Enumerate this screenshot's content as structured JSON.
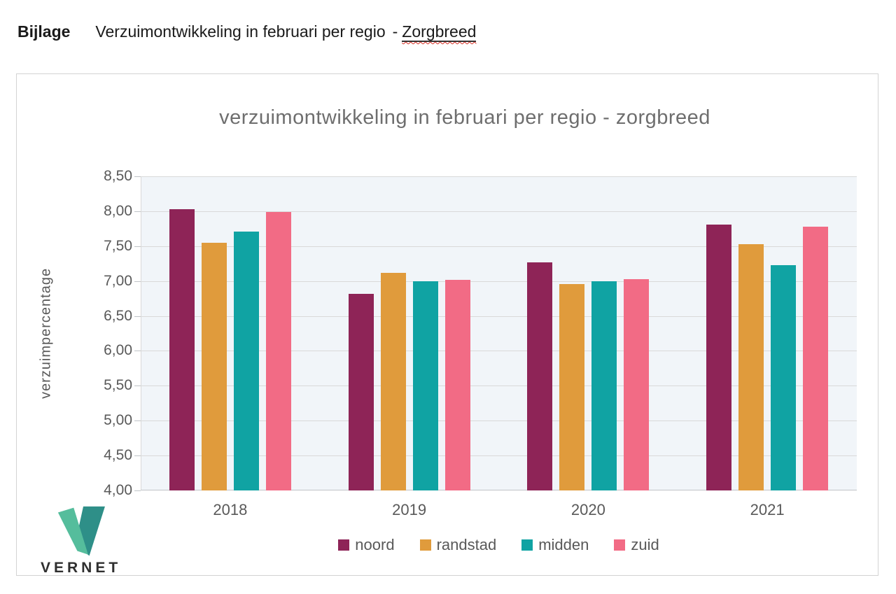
{
  "header": {
    "prefix": "Bijlage",
    "title": "Verzuimontwikkeling in februari per regio",
    "separator": "-",
    "suffix": "Zorgbreed"
  },
  "logo": {
    "text": "VERNET"
  },
  "colors": {
    "plot_background": "#f1f5f9",
    "gridline": "#d9d9d9",
    "axis_line": "#c0c4c8",
    "axis_text": "#595959",
    "title_text": "#6e6e6e",
    "logo_light_green": "#55bd9c",
    "logo_dark_teal": "#2e8f88"
  },
  "chart_data": {
    "type": "bar",
    "title": "verzuimontwikkeling  in februari per regio - zorgbreed",
    "xlabel": "",
    "ylabel": "verzuimpercentage",
    "categories": [
      "2018",
      "2019",
      "2020",
      "2021"
    ],
    "series": [
      {
        "name": "noord",
        "color": "#8e2457",
        "values": [
          8.03,
          6.82,
          7.27,
          7.81
        ]
      },
      {
        "name": "randstad",
        "color": "#e09b3c",
        "values": [
          7.55,
          7.12,
          6.96,
          7.53
        ]
      },
      {
        "name": "midden",
        "color": "#10a3a3",
        "values": [
          7.71,
          7.0,
          7.0,
          7.23
        ]
      },
      {
        "name": "zuid",
        "color": "#f26b85",
        "values": [
          7.99,
          7.02,
          7.03,
          7.78
        ]
      }
    ],
    "ylim": [
      4.0,
      8.5
    ],
    "ytick_step": 0.5,
    "ytick_labels": [
      "8,50",
      "8,00",
      "7,50",
      "7,00",
      "6,50",
      "6,00",
      "5,50",
      "5,00",
      "4,50",
      "4,00"
    ],
    "grid": true,
    "legend_position": "bottom"
  }
}
